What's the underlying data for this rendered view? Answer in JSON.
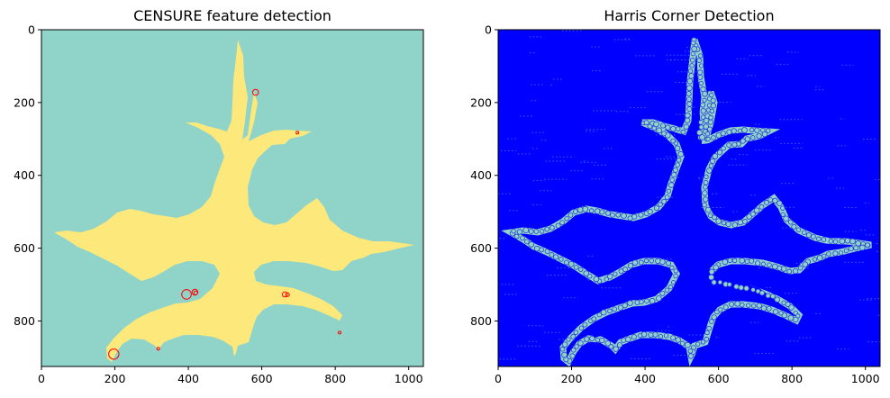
{
  "chart_data": [
    {
      "type": "image",
      "title": "CENSURE feature detection",
      "xlim": [
        0,
        1040
      ],
      "ylim": [
        925,
        0
      ],
      "x_ticks": [
        0,
        200,
        400,
        600,
        800,
        1000
      ],
      "y_ticks": [
        0,
        200,
        400,
        600,
        800
      ],
      "background_color": "#90d3c8",
      "shape_color": "#fde97b",
      "marker_color": "#ff0000",
      "keypoints": [
        {
          "x": 583,
          "y": 172,
          "r": 8
        },
        {
          "x": 697,
          "y": 283,
          "r": 3
        },
        {
          "x": 395,
          "y": 727,
          "r": 13
        },
        {
          "x": 418,
          "y": 721,
          "r": 8
        },
        {
          "x": 420,
          "y": 723,
          "r": 5
        },
        {
          "x": 663,
          "y": 727,
          "r": 7
        },
        {
          "x": 670,
          "y": 728,
          "r": 5
        },
        {
          "x": 812,
          "y": 832,
          "r": 3
        },
        {
          "x": 318,
          "y": 876,
          "r": 3
        },
        {
          "x": 197,
          "y": 891,
          "r": 14
        }
      ]
    },
    {
      "type": "image",
      "title": "Harris Corner Detection",
      "xlim": [
        0,
        1040
      ],
      "ylim": [
        925,
        0
      ],
      "x_ticks": [
        0,
        200,
        400,
        600,
        800,
        1000
      ],
      "y_ticks": [
        0,
        200,
        400,
        600,
        800
      ],
      "background_color": "#0000ff",
      "inner_color": "#fde97b",
      "dot_color": "#90d3c8",
      "dot_edge_color": "#2b3bd6"
    }
  ]
}
